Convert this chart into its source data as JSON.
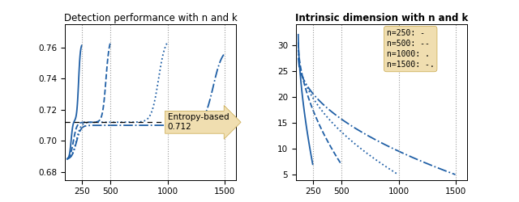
{
  "title_left": "Detection performance with n and k",
  "title_right": "Intrinsic dimension with n and k",
  "entropy_value": 0.712,
  "entropy_label": "Entropy-based\n0.712",
  "left_ylim": [
    0.675,
    0.775
  ],
  "left_yticks": [
    0.68,
    0.7,
    0.72,
    0.74,
    0.76
  ],
  "right_ylim": [
    4,
    34
  ],
  "right_yticks": [
    5,
    10,
    15,
    20,
    25,
    30
  ],
  "xlim": [
    100,
    1600
  ],
  "xticks": [
    250,
    500,
    1000,
    1500
  ],
  "vlines": [
    250,
    500,
    1000,
    1500
  ],
  "line_color": "#1f5fa6",
  "legend_labels": [
    "n=250: -",
    "n=500: --",
    "n=1000: .",
    "n=1500: -."
  ],
  "legend_bg": "#f0deb0",
  "annotation_bg": "#f0deb0",
  "title_left_bold": false,
  "title_right_bold": true
}
